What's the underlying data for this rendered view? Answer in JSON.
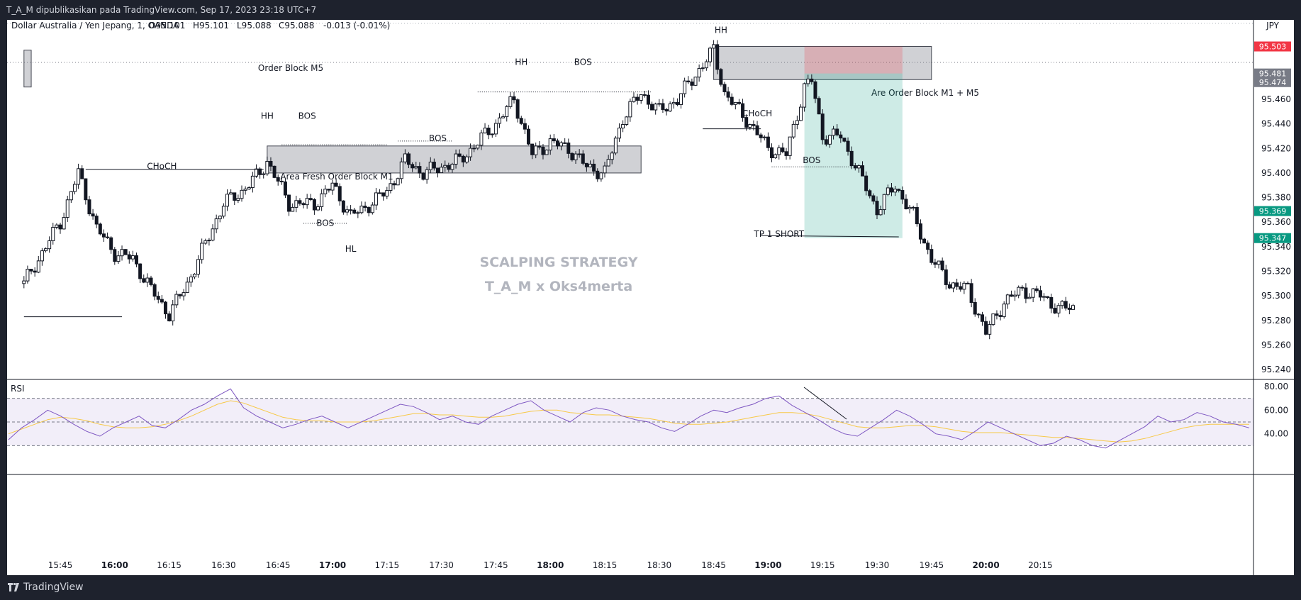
{
  "header": {
    "published": "T_A_M dipublikasikan pada TradingView.com, Sep 17, 2023 23:18 UTC+7"
  },
  "footer": {
    "brand": "TradingView",
    "logo_icon": "tradingview-logo-icon"
  },
  "chart_data": [
    {
      "type": "candlestick",
      "title": "Dollar Australia / Yen Jepang, 1, OANDA",
      "ohlc_label": {
        "o": "O95.101",
        "h": "H95.101",
        "l": "L95.088",
        "c": "C95.088",
        "chg": "-0.013 (-0.01%)"
      },
      "currency": "JPY",
      "y_ticks": [
        "95.460",
        "95.440",
        "95.420",
        "95.400",
        "95.380",
        "95.360",
        "95.340",
        "95.320",
        "95.300",
        "95.280",
        "95.260",
        "95.240"
      ],
      "y_tick_values": [
        95.46,
        95.44,
        95.42,
        95.4,
        95.38,
        95.36,
        95.34,
        95.32,
        95.3,
        95.28,
        95.26,
        95.24
      ],
      "x_ticks": [
        "15:45",
        "16:00",
        "16:15",
        "16:30",
        "16:45",
        "17:00",
        "17:15",
        "17:30",
        "17:45",
        "18:00",
        "18:15",
        "18:30",
        "18:45",
        "19:00",
        "19:15",
        "19:30",
        "19:45",
        "20:00",
        "20:15"
      ],
      "x_tick_bold": [
        "16:00",
        "17:00",
        "18:00",
        "19:00",
        "20:00"
      ],
      "price_labels": [
        {
          "text": "95.503",
          "value": 95.503,
          "color": "#f23645"
        },
        {
          "text": "95.481",
          "value": 95.481,
          "color": "#787b86"
        },
        {
          "text": "95.474",
          "value": 95.474,
          "color": "#787b86"
        },
        {
          "text": "95.369",
          "value": 95.369,
          "color": "#089981"
        },
        {
          "text": "95.347",
          "value": 95.347,
          "color": "#089981"
        }
      ],
      "watermark": [
        "SCALPING STRATEGY",
        "T_A_M x Oks4merta"
      ],
      "zones": [
        {
          "label": "Order Block M5",
          "time_from": "15:35",
          "time_to": "15:37",
          "y_from": 95.47,
          "y_to": 95.5
        },
        {
          "label": "Area Fresh Order Block M1",
          "time_from": "16:42",
          "time_to": "18:25",
          "y_from": 95.4,
          "y_to": 95.422
        },
        {
          "label": "Are Order Block M1 + M5",
          "time_from": "18:45",
          "time_to": "19:45",
          "y_from": 95.476,
          "y_to": 95.503
        }
      ],
      "short_position": {
        "entry": 95.481,
        "stop": 95.503,
        "target": 95.347,
        "time_from": "19:10",
        "time_to": "19:37"
      },
      "annotations": [
        {
          "text": "CHoCH",
          "time": "16:13",
          "price": 95.403
        },
        {
          "text": "HH",
          "time": "16:42",
          "price": 95.444
        },
        {
          "text": "BOS",
          "time": "16:53",
          "price": 95.444
        },
        {
          "text": "BOS",
          "time": "17:29",
          "price": 95.426
        },
        {
          "text": "BOS",
          "time": "16:58",
          "price": 95.357
        },
        {
          "text": "HL",
          "time": "17:05",
          "price": 95.336
        },
        {
          "text": "HH",
          "time": "17:52",
          "price": 95.488
        },
        {
          "text": "BOS",
          "time": "18:09",
          "price": 95.488
        },
        {
          "text": "HH",
          "time": "18:47",
          "price": 95.514
        },
        {
          "text": "CHoCH",
          "time": "18:57",
          "price": 95.446
        },
        {
          "text": "BOS",
          "time": "19:12",
          "price": 95.408
        },
        {
          "text": "TP 1 SHORT",
          "time": "19:03",
          "price": 95.348
        }
      ],
      "series": [
        {
          "name": "close",
          "x": [
            "15:35",
            "15:45",
            "15:50",
            "15:55",
            "16:00",
            "16:05",
            "16:10",
            "16:15",
            "16:20",
            "16:30",
            "16:35",
            "16:40",
            "16:42",
            "16:48",
            "16:55",
            "17:00",
            "17:05",
            "17:08",
            "17:15",
            "17:20",
            "17:25",
            "17:30",
            "17:35",
            "17:45",
            "17:50",
            "17:55",
            "18:00",
            "18:05",
            "18:10",
            "18:15",
            "18:20",
            "18:25",
            "18:30",
            "18:35",
            "18:40",
            "18:45",
            "18:48",
            "18:55",
            "19:00",
            "19:05",
            "19:10",
            "19:12",
            "19:15",
            "19:20",
            "19:25",
            "19:30",
            "19:35",
            "19:40",
            "19:45",
            "19:50",
            "19:55",
            "20:00",
            "20:05",
            "20:10",
            "20:15",
            "20:20",
            "20:25"
          ],
          "values": [
            95.31,
            95.36,
            95.4,
            95.355,
            95.335,
            95.33,
            95.305,
            95.285,
            95.31,
            95.375,
            95.385,
            95.4,
            95.41,
            95.375,
            95.375,
            95.39,
            95.365,
            95.37,
            95.385,
            95.41,
            95.4,
            95.405,
            95.41,
            95.44,
            95.46,
            95.415,
            95.425,
            95.42,
            95.405,
            95.4,
            95.445,
            95.465,
            95.45,
            95.46,
            95.48,
            95.5,
            95.465,
            95.44,
            95.42,
            95.415,
            95.47,
            95.475,
            95.43,
            95.43,
            95.4,
            95.37,
            95.39,
            95.365,
            95.33,
            95.31,
            95.305,
            95.27,
            95.295,
            95.305,
            95.3,
            95.29,
            95.29
          ]
        },
        {
          "name": "RSI",
          "y_ticks": [
            "80.00",
            "60.00",
            "40.00"
          ],
          "levels": [
            70,
            50,
            30
          ],
          "label": "RSI",
          "values": [
            35,
            45,
            52,
            60,
            55,
            48,
            42,
            38,
            45,
            50,
            55,
            47,
            45,
            52,
            60,
            65,
            72,
            78,
            62,
            55,
            50,
            45,
            48,
            52,
            55,
            50,
            45,
            50,
            55,
            60,
            65,
            63,
            58,
            52,
            55,
            50,
            48,
            55,
            60,
            65,
            68,
            60,
            55,
            50,
            58,
            62,
            60,
            55,
            52,
            50,
            45,
            42,
            48,
            55,
            60,
            58,
            62,
            65,
            70,
            72,
            64,
            58,
            52,
            45,
            40,
            38,
            45,
            52,
            60,
            55,
            48,
            40,
            38,
            35,
            42,
            50,
            45,
            40,
            35,
            30,
            32,
            38,
            35,
            30,
            28,
            34,
            40,
            46,
            55,
            50,
            52,
            58,
            55,
            50,
            48,
            45
          ]
        },
        {
          "name": "RSI-based MA",
          "values": [
            40,
            44,
            48,
            52,
            54,
            53,
            51,
            48,
            46,
            45,
            45,
            46,
            48,
            51,
            55,
            60,
            65,
            68,
            66,
            62,
            58,
            54,
            52,
            51,
            51,
            50,
            50,
            50,
            51,
            53,
            55,
            57,
            57,
            56,
            56,
            55,
            54,
            54,
            55,
            57,
            59,
            60,
            60,
            58,
            57,
            56,
            56,
            55,
            54,
            53,
            51,
            49,
            48,
            48,
            49,
            50,
            52,
            54,
            56,
            58,
            58,
            57,
            55,
            52,
            49,
            46,
            45,
            45,
            46,
            47,
            47,
            46,
            44,
            42,
            41,
            41,
            41,
            40,
            39,
            38,
            37,
            37,
            36,
            35,
            34,
            33,
            34,
            36,
            39,
            42,
            45,
            47,
            48,
            48,
            48,
            48
          ]
        }
      ]
    }
  ]
}
